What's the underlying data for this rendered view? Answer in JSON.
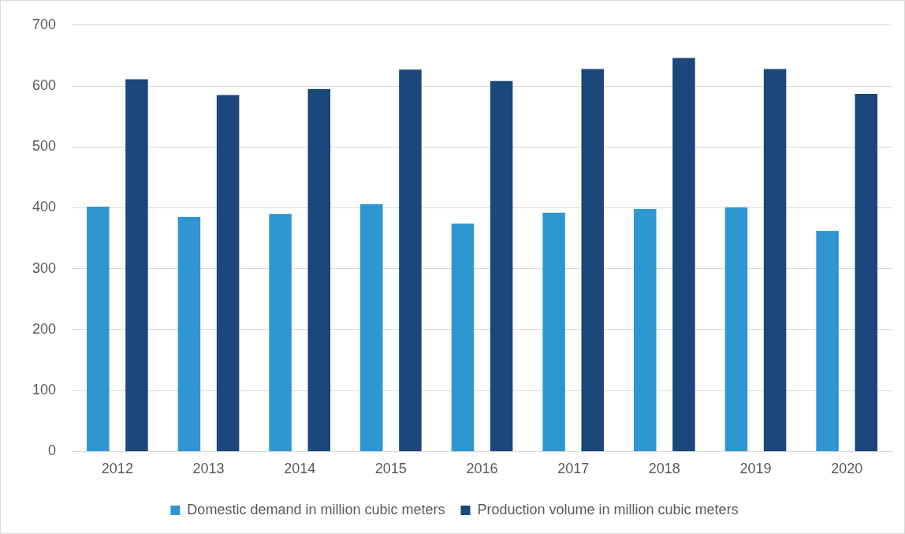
{
  "chart_data": {
    "type": "bar",
    "categories": [
      "2012",
      "2013",
      "2014",
      "2015",
      "2016",
      "2017",
      "2018",
      "2019",
      "2020"
    ],
    "series": [
      {
        "name": "Domestic demand in million cubic meters",
        "color": "#2e96d0",
        "values": [
          402,
          385,
          390,
          406,
          374,
          392,
          398,
          401,
          362
        ]
      },
      {
        "name": "Production volume in million cubic meters",
        "color": "#1b477a",
        "values": [
          611,
          585,
          595,
          627,
          608,
          628,
          646,
          628,
          587
        ]
      }
    ],
    "ylim": [
      0,
      700
    ],
    "yticks": [
      0,
      100,
      200,
      300,
      400,
      500,
      600,
      700
    ],
    "grid": "y",
    "legend": "bottom"
  }
}
